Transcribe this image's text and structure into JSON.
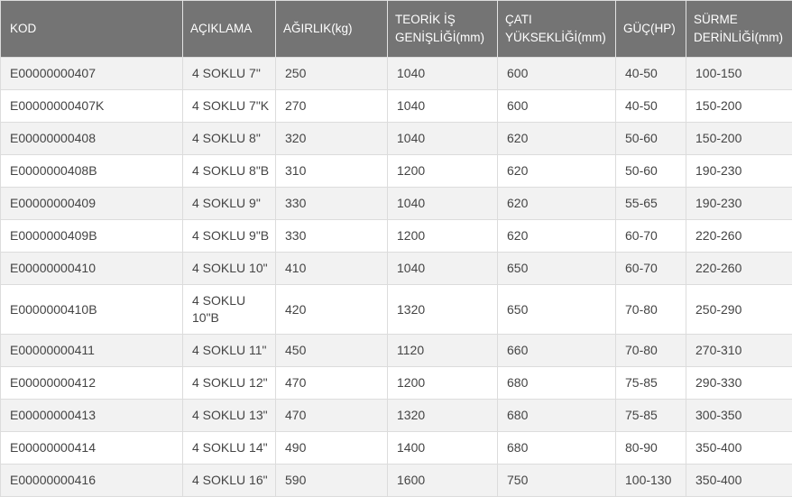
{
  "colors": {
    "header_bg": "#747474",
    "header_text": "#ffffff",
    "row_alt_bg": "#f2f2f2",
    "row_bg": "#ffffff",
    "cell_border": "#dcdcdc",
    "body_text": "#444444"
  },
  "table": {
    "columns": [
      {
        "key": "kod",
        "label": "KOD"
      },
      {
        "key": "aciklama",
        "label": "AÇIKLAMA"
      },
      {
        "key": "agirlik",
        "label": "AĞIRLIK(kg)"
      },
      {
        "key": "teorik-is-genisligi",
        "label": "TEORİK İŞ GENİŞLİĞİ(mm)"
      },
      {
        "key": "cati-yuksekligi",
        "label": "ÇATI YÜKSEKLİĞİ(mm)"
      },
      {
        "key": "guc",
        "label": "GÜÇ(HP)"
      },
      {
        "key": "surme-derinligi",
        "label": "SÜRME DERİNLİĞİ(mm)"
      }
    ],
    "rows": [
      [
        "E00000000407",
        "4 SOKLU 7\"",
        "250",
        "1040",
        "600",
        "40-50",
        "100-150"
      ],
      [
        "E00000000407K",
        "4 SOKLU 7\"K",
        "270",
        "1040",
        "600",
        "40-50",
        "150-200"
      ],
      [
        "E00000000408",
        "4 SOKLU 8\"",
        "320",
        "1040",
        "620",
        "50-60",
        "150-200"
      ],
      [
        "E0000000408B",
        "4 SOKLU 8\"B",
        "310",
        "1200",
        "620",
        "50-60",
        "190-230"
      ],
      [
        "E00000000409",
        "4 SOKLU 9\"",
        "330",
        "1040",
        "620",
        "55-65",
        "190-230"
      ],
      [
        "E0000000409B",
        "4 SOKLU 9\"B",
        "330",
        "1200",
        "620",
        "60-70",
        "220-260"
      ],
      [
        "E00000000410",
        "4 SOKLU 10\"",
        "410",
        "1040",
        "650",
        "60-70",
        "220-260"
      ],
      [
        "E0000000410B",
        "4 SOKLU 10\"B",
        "420",
        "1320",
        "650",
        "70-80",
        "250-290"
      ],
      [
        "E00000000411",
        "4 SOKLU 11\"",
        "450",
        "1120",
        "660",
        "70-80",
        "270-310"
      ],
      [
        "E00000000412",
        "4 SOKLU 12\"",
        "470",
        "1200",
        "680",
        "75-85",
        "290-330"
      ],
      [
        "E00000000413",
        "4 SOKLU 13\"",
        "470",
        "1320",
        "680",
        "75-85",
        "300-350"
      ],
      [
        "E00000000414",
        "4 SOKLU 14\"",
        "490",
        "1400",
        "680",
        "80-90",
        "350-400"
      ],
      [
        "E00000000416",
        "4 SOKLU 16\"",
        "590",
        "1600",
        "750",
        "100-130",
        "350-400"
      ]
    ]
  }
}
